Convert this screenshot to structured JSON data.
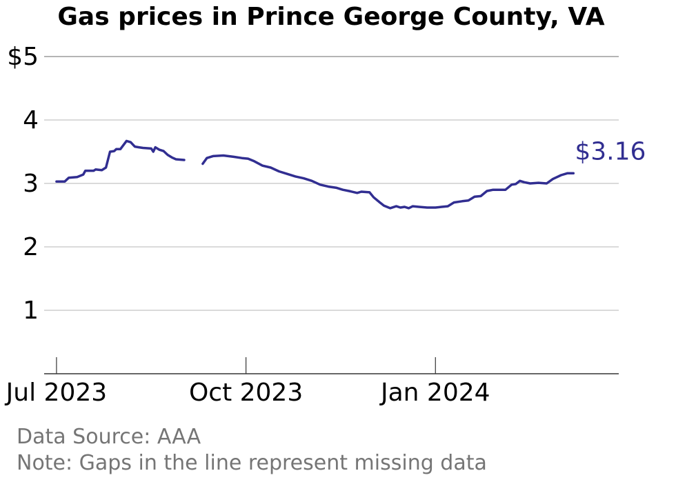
{
  "chart_data": {
    "type": "line",
    "title": "Gas prices in Prince George County, VA",
    "xlabel": "",
    "ylabel": "",
    "x_range": [
      "2023-06-25",
      "2024-03-30"
    ],
    "ylim": [
      0,
      5
    ],
    "y_ticks": [
      {
        "value": 1,
        "label": "1"
      },
      {
        "value": 2,
        "label": "2"
      },
      {
        "value": 3,
        "label": "3"
      },
      {
        "value": 4,
        "label": "4"
      },
      {
        "value": 5,
        "label": "$5"
      }
    ],
    "x_ticks": [
      {
        "date": "2023-07-01",
        "label": "Jul 2023"
      },
      {
        "date": "2023-10-01",
        "label": "Oct 2023"
      },
      {
        "date": "2024-01-01",
        "label": "Jan 2024"
      }
    ],
    "grid": true,
    "series": [
      {
        "color": "#312e91",
        "segments": [
          [
            [
              "2023-07-01",
              3.03
            ],
            [
              "2023-07-05",
              3.03
            ],
            [
              "2023-07-07",
              3.09
            ],
            [
              "2023-07-11",
              3.1
            ],
            [
              "2023-07-14",
              3.14
            ],
            [
              "2023-07-15",
              3.2
            ],
            [
              "2023-07-19",
              3.2
            ],
            [
              "2023-07-20",
              3.22
            ],
            [
              "2023-07-23",
              3.21
            ],
            [
              "2023-07-25",
              3.25
            ],
            [
              "2023-07-27",
              3.5
            ],
            [
              "2023-07-29",
              3.51
            ],
            [
              "2023-07-30",
              3.54
            ],
            [
              "2023-08-01",
              3.54
            ],
            [
              "2023-08-04",
              3.67
            ],
            [
              "2023-08-06",
              3.65
            ],
            [
              "2023-08-08",
              3.58
            ],
            [
              "2023-08-10",
              3.57
            ],
            [
              "2023-08-12",
              3.56
            ],
            [
              "2023-08-16",
              3.55
            ],
            [
              "2023-08-17",
              3.5
            ],
            [
              "2023-08-18",
              3.57
            ],
            [
              "2023-08-20",
              3.53
            ],
            [
              "2023-08-22",
              3.51
            ],
            [
              "2023-08-24",
              3.45
            ],
            [
              "2023-08-26",
              3.41
            ],
            [
              "2023-08-28",
              3.38
            ],
            [
              "2023-09-01",
              3.37
            ]
          ],
          [
            [
              "2023-09-10",
              3.31
            ],
            [
              "2023-09-12",
              3.4
            ],
            [
              "2023-09-15",
              3.43
            ],
            [
              "2023-09-20",
              3.44
            ],
            [
              "2023-09-25",
              3.42
            ],
            [
              "2023-09-29",
              3.4
            ],
            [
              "2023-10-02",
              3.39
            ],
            [
              "2023-10-05",
              3.35
            ],
            [
              "2023-10-09",
              3.28
            ],
            [
              "2023-10-13",
              3.25
            ],
            [
              "2023-10-17",
              3.19
            ],
            [
              "2023-10-21",
              3.15
            ],
            [
              "2023-10-25",
              3.11
            ],
            [
              "2023-10-29",
              3.08
            ],
            [
              "2023-11-02",
              3.04
            ],
            [
              "2023-11-06",
              2.98
            ],
            [
              "2023-11-10",
              2.95
            ],
            [
              "2023-11-14",
              2.93
            ],
            [
              "2023-11-17",
              2.9
            ],
            [
              "2023-11-20",
              2.88
            ],
            [
              "2023-11-24",
              2.85
            ],
            [
              "2023-11-26",
              2.87
            ],
            [
              "2023-11-30",
              2.86
            ],
            [
              "2023-12-02",
              2.78
            ],
            [
              "2023-12-05",
              2.7
            ],
            [
              "2023-12-07",
              2.65
            ],
            [
              "2023-12-10",
              2.61
            ],
            [
              "2023-12-13",
              2.64
            ],
            [
              "2023-12-15",
              2.62
            ],
            [
              "2023-12-17",
              2.63
            ],
            [
              "2023-12-19",
              2.61
            ],
            [
              "2023-12-21",
              2.64
            ],
            [
              "2023-12-24",
              2.63
            ],
            [
              "2023-12-28",
              2.62
            ],
            [
              "2024-01-01",
              2.62
            ],
            [
              "2024-01-04",
              2.63
            ],
            [
              "2024-01-07",
              2.64
            ],
            [
              "2024-01-10",
              2.7
            ],
            [
              "2024-01-14",
              2.72
            ],
            [
              "2024-01-17",
              2.73
            ],
            [
              "2024-01-20",
              2.79
            ],
            [
              "2024-01-23",
              2.8
            ],
            [
              "2024-01-26",
              2.88
            ],
            [
              "2024-01-29",
              2.9
            ],
            [
              "2024-02-01",
              2.9
            ],
            [
              "2024-02-04",
              2.9
            ],
            [
              "2024-02-07",
              2.98
            ],
            [
              "2024-02-09",
              2.99
            ],
            [
              "2024-02-11",
              3.04
            ],
            [
              "2024-02-13",
              3.02
            ],
            [
              "2024-02-16",
              3.0
            ],
            [
              "2024-02-20",
              3.01
            ],
            [
              "2024-02-24",
              3.0
            ],
            [
              "2024-02-27",
              3.07
            ],
            [
              "2024-03-02",
              3.13
            ],
            [
              "2024-03-05",
              3.16
            ],
            [
              "2024-03-08",
              3.16
            ]
          ]
        ]
      }
    ],
    "end_label": "$3.16"
  },
  "footer": {
    "source": "Data Source: AAA",
    "note": "Note: Gaps in the line represent missing data"
  }
}
